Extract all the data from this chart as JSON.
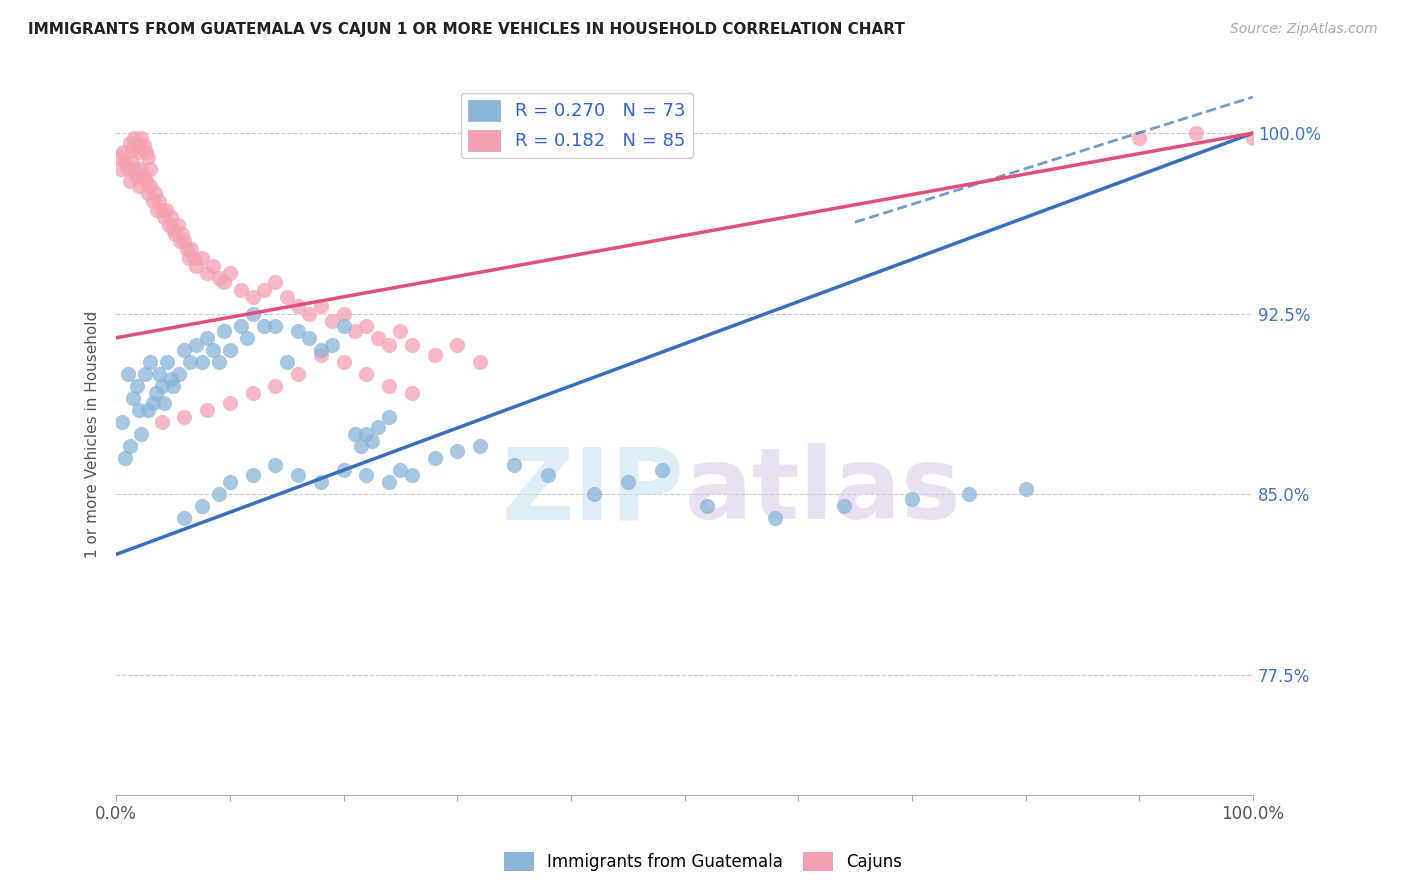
{
  "title": "IMMIGRANTS FROM GUATEMALA VS CAJUN 1 OR MORE VEHICLES IN HOUSEHOLD CORRELATION CHART",
  "source": "Source: ZipAtlas.com",
  "ylabel": "1 or more Vehicles in Household",
  "yticks": [
    "100.0%",
    "92.5%",
    "85.0%",
    "77.5%"
  ],
  "ytick_values": [
    1.0,
    0.925,
    0.85,
    0.775
  ],
  "xmin": 0.0,
  "xmax": 1.0,
  "ymin": 0.725,
  "ymax": 1.025,
  "legend_r_blue": "R = 0.270",
  "legend_n_blue": "N = 73",
  "legend_r_pink": "R = 0.182",
  "legend_n_pink": "N = 85",
  "blue_color": "#8ab4d8",
  "pink_color": "#f4a0b0",
  "blue_line_color": "#3a6fba",
  "pink_line_color": "#e0507a",
  "watermark_zip": "ZIP",
  "watermark_atlas": "atlas",
  "blue_line_x0": 0.0,
  "blue_line_y0": 0.825,
  "blue_line_x1": 1.0,
  "blue_line_y1": 1.0,
  "blue_line_x1_dashed": 1.0,
  "blue_line_y1_dashed": 1.015,
  "pink_line_x0": 0.0,
  "pink_line_y0": 0.915,
  "pink_line_x1": 1.0,
  "pink_line_y1": 1.0,
  "blue_scatter_x": [
    0.005,
    0.008,
    0.01,
    0.012,
    0.015,
    0.018,
    0.02,
    0.022,
    0.025,
    0.028,
    0.03,
    0.032,
    0.035,
    0.038,
    0.04,
    0.042,
    0.045,
    0.048,
    0.05,
    0.055,
    0.06,
    0.065,
    0.07,
    0.075,
    0.08,
    0.085,
    0.09,
    0.095,
    0.1,
    0.11,
    0.115,
    0.12,
    0.13,
    0.14,
    0.15,
    0.16,
    0.17,
    0.18,
    0.19,
    0.2,
    0.21,
    0.215,
    0.22,
    0.225,
    0.23,
    0.24,
    0.28,
    0.3,
    0.32,
    0.35,
    0.38,
    0.42,
    0.45,
    0.48,
    0.52,
    0.58,
    0.64,
    0.7,
    0.75,
    0.8,
    0.06,
    0.075,
    0.09,
    0.1,
    0.12,
    0.14,
    0.16,
    0.18,
    0.2,
    0.22,
    0.24,
    0.25,
    0.26
  ],
  "blue_scatter_y": [
    0.88,
    0.865,
    0.9,
    0.87,
    0.89,
    0.895,
    0.885,
    0.875,
    0.9,
    0.885,
    0.905,
    0.888,
    0.892,
    0.9,
    0.895,
    0.888,
    0.905,
    0.898,
    0.895,
    0.9,
    0.91,
    0.905,
    0.912,
    0.905,
    0.915,
    0.91,
    0.905,
    0.918,
    0.91,
    0.92,
    0.915,
    0.925,
    0.92,
    0.92,
    0.905,
    0.918,
    0.915,
    0.91,
    0.912,
    0.92,
    0.875,
    0.87,
    0.875,
    0.872,
    0.878,
    0.882,
    0.865,
    0.868,
    0.87,
    0.862,
    0.858,
    0.85,
    0.855,
    0.86,
    0.845,
    0.84,
    0.845,
    0.848,
    0.85,
    0.852,
    0.84,
    0.845,
    0.85,
    0.855,
    0.858,
    0.862,
    0.858,
    0.855,
    0.86,
    0.858,
    0.855,
    0.86,
    0.858
  ],
  "pink_scatter_x": [
    0.002,
    0.004,
    0.006,
    0.008,
    0.01,
    0.012,
    0.014,
    0.016,
    0.018,
    0.02,
    0.022,
    0.024,
    0.026,
    0.028,
    0.03,
    0.032,
    0.034,
    0.036,
    0.038,
    0.04,
    0.042,
    0.044,
    0.046,
    0.048,
    0.05,
    0.052,
    0.054,
    0.056,
    0.058,
    0.06,
    0.062,
    0.064,
    0.066,
    0.068,
    0.07,
    0.075,
    0.08,
    0.085,
    0.09,
    0.095,
    0.1,
    0.11,
    0.12,
    0.13,
    0.14,
    0.15,
    0.16,
    0.17,
    0.18,
    0.19,
    0.2,
    0.21,
    0.22,
    0.23,
    0.24,
    0.25,
    0.26,
    0.28,
    0.3,
    0.32,
    0.016,
    0.018,
    0.02,
    0.022,
    0.024,
    0.026,
    0.028,
    0.03,
    0.012,
    0.014,
    0.2,
    0.18,
    0.22,
    0.24,
    0.26,
    0.9,
    0.95,
    1.0,
    0.16,
    0.14,
    0.12,
    0.1,
    0.08,
    0.06,
    0.04
  ],
  "pink_scatter_y": [
    0.99,
    0.985,
    0.992,
    0.988,
    0.985,
    0.98,
    0.988,
    0.985,
    0.982,
    0.978,
    0.985,
    0.982,
    0.98,
    0.975,
    0.978,
    0.972,
    0.975,
    0.968,
    0.972,
    0.968,
    0.965,
    0.968,
    0.962,
    0.965,
    0.96,
    0.958,
    0.962,
    0.955,
    0.958,
    0.955,
    0.952,
    0.948,
    0.952,
    0.948,
    0.945,
    0.948,
    0.942,
    0.945,
    0.94,
    0.938,
    0.942,
    0.935,
    0.932,
    0.935,
    0.938,
    0.932,
    0.928,
    0.925,
    0.928,
    0.922,
    0.925,
    0.918,
    0.92,
    0.915,
    0.912,
    0.918,
    0.912,
    0.908,
    0.912,
    0.905,
    0.998,
    0.995,
    0.992,
    0.998,
    0.995,
    0.992,
    0.99,
    0.985,
    0.996,
    0.993,
    0.905,
    0.908,
    0.9,
    0.895,
    0.892,
    0.998,
    1.0,
    0.998,
    0.9,
    0.895,
    0.892,
    0.888,
    0.885,
    0.882,
    0.88
  ]
}
